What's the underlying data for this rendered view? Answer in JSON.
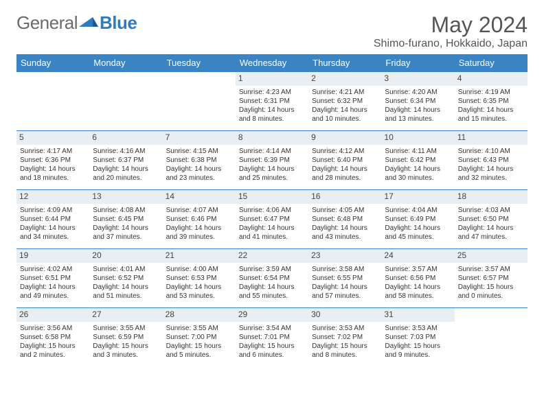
{
  "brand": {
    "part1": "General",
    "part2": "Blue"
  },
  "title": "May 2024",
  "location": "Shimo-furano, Hokkaido, Japan",
  "colors": {
    "header_bg": "#3b84c4",
    "header_text": "#ffffff",
    "daynum_bg": "#e9eef2",
    "border": "#3b84c4",
    "text": "#333333",
    "title_text": "#555555",
    "logo_gray": "#6a6a6a",
    "logo_blue": "#2d7bc0"
  },
  "weekdays": [
    "Sunday",
    "Monday",
    "Tuesday",
    "Wednesday",
    "Thursday",
    "Friday",
    "Saturday"
  ],
  "weeks": [
    [
      null,
      null,
      null,
      {
        "n": "1",
        "sr": "4:23 AM",
        "ss": "6:31 PM",
        "dl": "14 hours and 8 minutes."
      },
      {
        "n": "2",
        "sr": "4:21 AM",
        "ss": "6:32 PM",
        "dl": "14 hours and 10 minutes."
      },
      {
        "n": "3",
        "sr": "4:20 AM",
        "ss": "6:34 PM",
        "dl": "14 hours and 13 minutes."
      },
      {
        "n": "4",
        "sr": "4:19 AM",
        "ss": "6:35 PM",
        "dl": "14 hours and 15 minutes."
      }
    ],
    [
      {
        "n": "5",
        "sr": "4:17 AM",
        "ss": "6:36 PM",
        "dl": "14 hours and 18 minutes."
      },
      {
        "n": "6",
        "sr": "4:16 AM",
        "ss": "6:37 PM",
        "dl": "14 hours and 20 minutes."
      },
      {
        "n": "7",
        "sr": "4:15 AM",
        "ss": "6:38 PM",
        "dl": "14 hours and 23 minutes."
      },
      {
        "n": "8",
        "sr": "4:14 AM",
        "ss": "6:39 PM",
        "dl": "14 hours and 25 minutes."
      },
      {
        "n": "9",
        "sr": "4:12 AM",
        "ss": "6:40 PM",
        "dl": "14 hours and 28 minutes."
      },
      {
        "n": "10",
        "sr": "4:11 AM",
        "ss": "6:42 PM",
        "dl": "14 hours and 30 minutes."
      },
      {
        "n": "11",
        "sr": "4:10 AM",
        "ss": "6:43 PM",
        "dl": "14 hours and 32 minutes."
      }
    ],
    [
      {
        "n": "12",
        "sr": "4:09 AM",
        "ss": "6:44 PM",
        "dl": "14 hours and 34 minutes."
      },
      {
        "n": "13",
        "sr": "4:08 AM",
        "ss": "6:45 PM",
        "dl": "14 hours and 37 minutes."
      },
      {
        "n": "14",
        "sr": "4:07 AM",
        "ss": "6:46 PM",
        "dl": "14 hours and 39 minutes."
      },
      {
        "n": "15",
        "sr": "4:06 AM",
        "ss": "6:47 PM",
        "dl": "14 hours and 41 minutes."
      },
      {
        "n": "16",
        "sr": "4:05 AM",
        "ss": "6:48 PM",
        "dl": "14 hours and 43 minutes."
      },
      {
        "n": "17",
        "sr": "4:04 AM",
        "ss": "6:49 PM",
        "dl": "14 hours and 45 minutes."
      },
      {
        "n": "18",
        "sr": "4:03 AM",
        "ss": "6:50 PM",
        "dl": "14 hours and 47 minutes."
      }
    ],
    [
      {
        "n": "19",
        "sr": "4:02 AM",
        "ss": "6:51 PM",
        "dl": "14 hours and 49 minutes."
      },
      {
        "n": "20",
        "sr": "4:01 AM",
        "ss": "6:52 PM",
        "dl": "14 hours and 51 minutes."
      },
      {
        "n": "21",
        "sr": "4:00 AM",
        "ss": "6:53 PM",
        "dl": "14 hours and 53 minutes."
      },
      {
        "n": "22",
        "sr": "3:59 AM",
        "ss": "6:54 PM",
        "dl": "14 hours and 55 minutes."
      },
      {
        "n": "23",
        "sr": "3:58 AM",
        "ss": "6:55 PM",
        "dl": "14 hours and 57 minutes."
      },
      {
        "n": "24",
        "sr": "3:57 AM",
        "ss": "6:56 PM",
        "dl": "14 hours and 58 minutes."
      },
      {
        "n": "25",
        "sr": "3:57 AM",
        "ss": "6:57 PM",
        "dl": "15 hours and 0 minutes."
      }
    ],
    [
      {
        "n": "26",
        "sr": "3:56 AM",
        "ss": "6:58 PM",
        "dl": "15 hours and 2 minutes."
      },
      {
        "n": "27",
        "sr": "3:55 AM",
        "ss": "6:59 PM",
        "dl": "15 hours and 3 minutes."
      },
      {
        "n": "28",
        "sr": "3:55 AM",
        "ss": "7:00 PM",
        "dl": "15 hours and 5 minutes."
      },
      {
        "n": "29",
        "sr": "3:54 AM",
        "ss": "7:01 PM",
        "dl": "15 hours and 6 minutes."
      },
      {
        "n": "30",
        "sr": "3:53 AM",
        "ss": "7:02 PM",
        "dl": "15 hours and 8 minutes."
      },
      {
        "n": "31",
        "sr": "3:53 AM",
        "ss": "7:03 PM",
        "dl": "15 hours and 9 minutes."
      },
      null
    ]
  ],
  "labels": {
    "sunrise": "Sunrise:",
    "sunset": "Sunset:",
    "daylight": "Daylight:"
  }
}
